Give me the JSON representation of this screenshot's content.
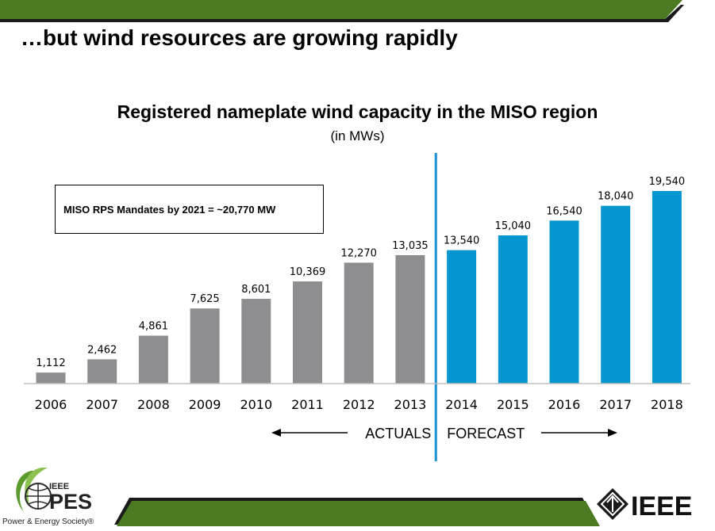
{
  "slide": {
    "title": "…but wind resources are growing rapidly"
  },
  "chart_data": {
    "type": "bar",
    "title": "Registered nameplate wind capacity in the MISO region",
    "subtitle": "(in MWs)",
    "xlabel": "",
    "ylabel": "",
    "ylim": [
      0,
      20000
    ],
    "grid": false,
    "categories": [
      "2006",
      "2007",
      "2008",
      "2009",
      "2010",
      "2011",
      "2012",
      "2013",
      "2014",
      "2015",
      "2016",
      "2017",
      "2018"
    ],
    "series": [
      {
        "name": "",
        "values": [
          1112,
          2462,
          4861,
          7625,
          8601,
          10369,
          12270,
          13035,
          13540,
          15040,
          16540,
          18040,
          19540
        ],
        "value_labels": [
          "1,112",
          "2,462",
          "4,861",
          "7,625",
          "8,601",
          "10,369",
          "12,270",
          "13,035",
          "13,540",
          "15,040",
          "16,540",
          "18,040",
          "19,540"
        ]
      }
    ],
    "actual_count": 8,
    "colors": {
      "actual": "#8e8e90",
      "forecast": "#0596d0",
      "divider": "#1c8fd0"
    },
    "annotations": {
      "mandate": "MISO RPS Mandates by 2021 = ~20,770 MW",
      "actuals": "ACTUALS",
      "forecast": "FORECAST"
    }
  },
  "branding": {
    "band_color": "#4a7a22",
    "pes_top": "IEEE",
    "pes_main": "PES",
    "pes_sub": "Power & Energy Society®",
    "ieee": "IEEE"
  }
}
